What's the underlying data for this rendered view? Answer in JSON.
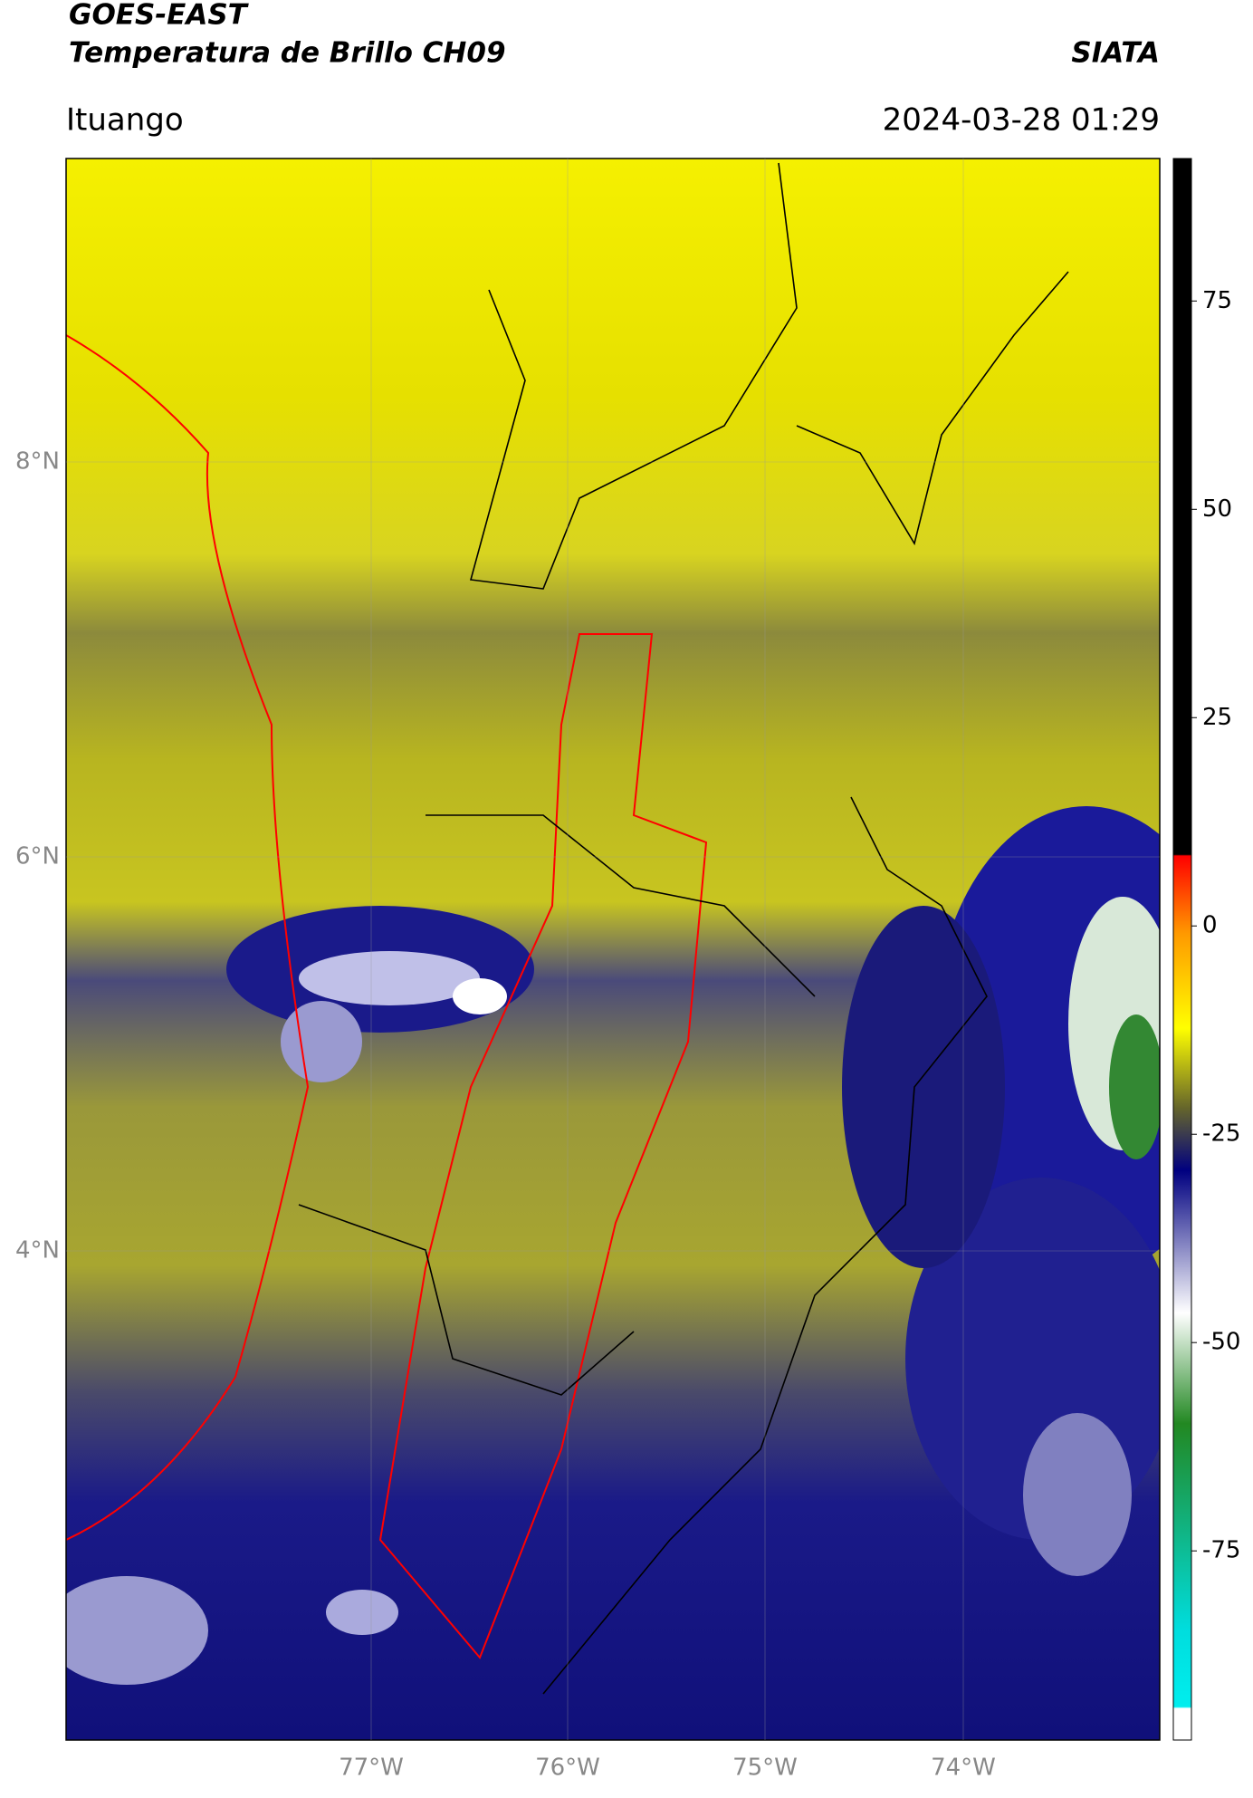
{
  "header": {
    "satellite": "GOES-EAST",
    "product": "Temperatura de Brillo CH09",
    "agency": "SIATA",
    "location": "Ituango",
    "datetime": "2024-03-28 01:29"
  },
  "map": {
    "lat_labels": [
      "8°N",
      "6°N",
      "4°N"
    ],
    "lon_labels": [
      "77°W",
      "76°W",
      "75°W",
      "74°W"
    ]
  },
  "colorbar": {
    "lim": [
      -97.7,
      92.1
    ],
    "ticks": [
      75,
      50,
      25,
      0,
      -25,
      -50,
      -75
    ]
  }
}
